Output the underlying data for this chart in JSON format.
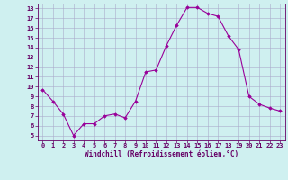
{
  "x": [
    0,
    1,
    2,
    3,
    4,
    5,
    6,
    7,
    8,
    9,
    10,
    11,
    12,
    13,
    14,
    15,
    16,
    17,
    18,
    19,
    20,
    21,
    22,
    23
  ],
  "y": [
    9.7,
    8.5,
    7.2,
    5.0,
    6.2,
    6.2,
    7.0,
    7.2,
    6.8,
    8.5,
    11.5,
    11.7,
    14.2,
    16.3,
    18.1,
    18.1,
    17.5,
    17.2,
    15.2,
    13.8,
    9.0,
    8.2,
    7.8,
    7.5
  ],
  "line_color": "#990099",
  "marker": "D",
  "marker_size": 1.8,
  "line_width": 0.8,
  "bg_color": "#cff0f0",
  "grid_color": "#aaaacc",
  "axis_color": "#660066",
  "xlabel": "Windchill (Refroidissement éolien,°C)",
  "xlabel_color": "#660066",
  "xlabel_fontsize": 5.5,
  "tick_color": "#660066",
  "tick_fontsize": 5.0,
  "ylim": [
    4.5,
    18.5
  ],
  "xlim": [
    -0.5,
    23.5
  ],
  "yticks": [
    5,
    6,
    7,
    8,
    9,
    10,
    11,
    12,
    13,
    14,
    15,
    16,
    17,
    18
  ],
  "xticks": [
    0,
    1,
    2,
    3,
    4,
    5,
    6,
    7,
    8,
    9,
    10,
    11,
    12,
    13,
    14,
    15,
    16,
    17,
    18,
    19,
    20,
    21,
    22,
    23
  ]
}
